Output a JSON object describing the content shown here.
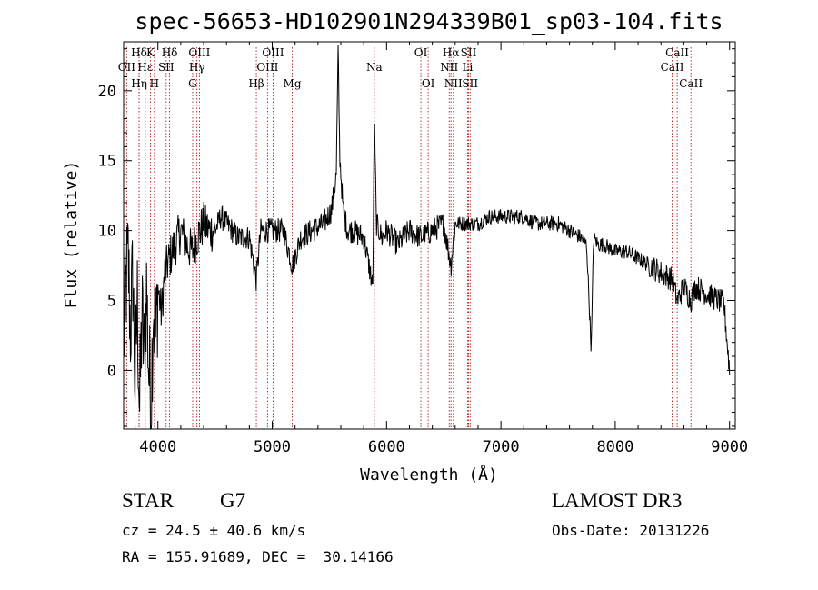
{
  "chart_data": {
    "type": "line",
    "title": "spec-56653-HD102901N294339B01_sp03-104.fits",
    "xlabel": "Wavelength (Å)",
    "ylabel": "Flux (relative)",
    "xlim": [
      3700,
      9050
    ],
    "ylim": [
      -4.2,
      23.5
    ],
    "xticks": [
      4000,
      5000,
      6000,
      7000,
      8000,
      9000
    ],
    "yticks": [
      0,
      5,
      10,
      15,
      20
    ],
    "xtick_labels": [
      "4000",
      "5000",
      "6000",
      "7000",
      "8000",
      "9000"
    ],
    "ytick_labels": [
      "0",
      "5",
      "10",
      "15",
      "20"
    ],
    "line_color": "#000000",
    "marker_color": "#b22222",
    "lines": [
      {
        "name": "Hδ",
        "wave": 3835,
        "row": 0
      },
      {
        "name": "OII",
        "wave": 3727,
        "row": 1
      },
      {
        "name": "Hη",
        "wave": 3836,
        "row": 2
      },
      {
        "name": "Hε",
        "wave": 3889,
        "row": 1
      },
      {
        "name": "K",
        "wave": 3934,
        "row": 0
      },
      {
        "name": "H",
        "wave": 3969,
        "row": 2
      },
      {
        "name": "SII",
        "wave": 4072,
        "row": 1
      },
      {
        "name": "Hδ",
        "wave": 4102,
        "row": 0
      },
      {
        "name": "OIII",
        "wave": 4363,
        "row": 0
      },
      {
        "name": "Hγ",
        "wave": 4341,
        "row": 1
      },
      {
        "name": "G",
        "wave": 4304,
        "row": 2
      },
      {
        "name": "Hβ",
        "wave": 4861,
        "row": 2
      },
      {
        "name": "OIII",
        "wave": 5007,
        "row": 0
      },
      {
        "name": "OIII",
        "wave": 4959,
        "row": 1
      },
      {
        "name": "Mg",
        "wave": 5175,
        "row": 2
      },
      {
        "name": "Na",
        "wave": 5893,
        "row": 1
      },
      {
        "name": "OI",
        "wave": 6300,
        "row": 0
      },
      {
        "name": "OI",
        "wave": 6364,
        "row": 2
      },
      {
        "name": "Hα",
        "wave": 6563,
        "row": 0
      },
      {
        "name": "NII",
        "wave": 6548,
        "row": 1
      },
      {
        "name": "NII",
        "wave": 6584,
        "row": 2
      },
      {
        "name": "SII",
        "wave": 6717,
        "row": 0
      },
      {
        "name": "Li",
        "wave": 6708,
        "row": 1
      },
      {
        "name": "SII",
        "wave": 6731,
        "row": 2
      },
      {
        "name": "CaII",
        "wave": 8542,
        "row": 0
      },
      {
        "name": "CaII",
        "wave": 8498,
        "row": 1
      },
      {
        "name": "CaII",
        "wave": 8662,
        "row": 2
      }
    ],
    "spectrum": {
      "x": [
        3700,
        3720,
        3740,
        3760,
        3780,
        3800,
        3820,
        3840,
        3860,
        3880,
        3900,
        3920,
        3940,
        3960,
        3980,
        4000,
        4030,
        4060,
        4100,
        4150,
        4200,
        4250,
        4300,
        4340,
        4400,
        4450,
        4500,
        4550,
        4600,
        4700,
        4800,
        4860,
        4900,
        5000,
        5100,
        5175,
        5250,
        5350,
        5450,
        5520,
        5560,
        5577,
        5590,
        5620,
        5660,
        5700,
        5800,
        5880,
        5893,
        5910,
        5960,
        6000,
        6100,
        6200,
        6300,
        6400,
        6500,
        6563,
        6600,
        6700,
        6800,
        6900,
        7000,
        7100,
        7200,
        7300,
        7400,
        7500,
        7600,
        7700,
        7750,
        7790,
        7810,
        7850,
        7900,
        8000,
        8100,
        8200,
        8300,
        8400,
        8500,
        8542,
        8600,
        8662,
        8700,
        8800,
        8900,
        8950,
        9000
      ],
      "y": [
        2,
        6,
        8,
        3,
        7,
        -1,
        5,
        -3,
        4,
        1,
        6,
        0,
        -2,
        5,
        2,
        6,
        4,
        7,
        8,
        9,
        10,
        9,
        8.5,
        9.5,
        10.5,
        10,
        10,
        11,
        10.5,
        9.5,
        9.5,
        6.5,
        10,
        10,
        10,
        7.5,
        9.5,
        10,
        10.5,
        11.5,
        14,
        23,
        15.5,
        11.5,
        10,
        10,
        9.5,
        6,
        18.3,
        10.5,
        9.5,
        10,
        9,
        10,
        9.5,
        10,
        10.5,
        7.5,
        10.5,
        10.5,
        10.5,
        11,
        11,
        11,
        11,
        10.5,
        10.5,
        10.5,
        10,
        9.5,
        9,
        1.5,
        9.5,
        9,
        9,
        8.5,
        8.5,
        8,
        7.5,
        7,
        6.5,
        5,
        6,
        5,
        6,
        5.5,
        5,
        4.8,
        0
      ]
    }
  },
  "footer": {
    "object_type": "STAR",
    "subclass": "G7",
    "survey": "LAMOST DR3",
    "cz": "cz = 24.5 ± 40.6 km/s",
    "obs_date": "Obs-Date: 20131226",
    "coords": "RA = 155.91689, DEC =  30.14166"
  }
}
